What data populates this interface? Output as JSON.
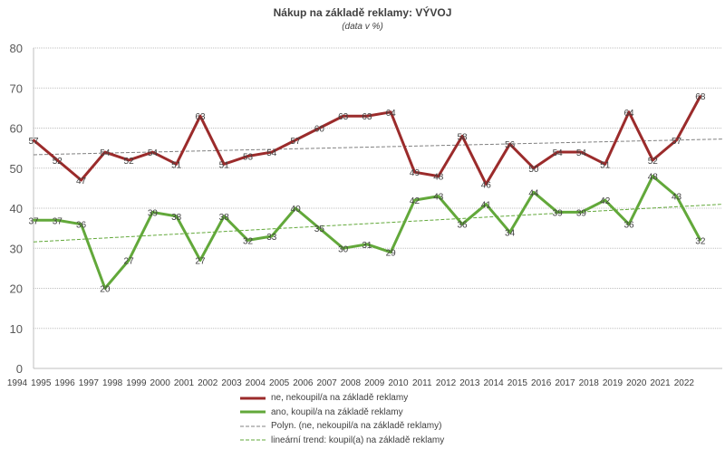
{
  "chart_data": {
    "type": "line",
    "title": "Nákup na základě reklamy: VÝVOJ",
    "subtitle": "(data v %)",
    "x": [
      "1994",
      "1995",
      "1996",
      "1997",
      "1998",
      "1999",
      "2000",
      "2001",
      "2002",
      "2003",
      "2004",
      "2005",
      "2006",
      "2007",
      "2008",
      "2009",
      "2010",
      "2011",
      "2012",
      "2013",
      "2014",
      "2015",
      "2016",
      "2017",
      "2018",
      "2019",
      "2020",
      "2021",
      "2022"
    ],
    "ylim": [
      0,
      80
    ],
    "yticks": [
      "0",
      "10",
      "20",
      "30",
      "40",
      "50",
      "60",
      "70",
      "80"
    ],
    "grid": true,
    "legend_position": "bottom",
    "series": [
      {
        "name": "ne, nekoupil/a na základě reklamy",
        "color": "#9b2b2b",
        "values": [
          57,
          52,
          47,
          54,
          52,
          54,
          51,
          63,
          51,
          53,
          54,
          57,
          60,
          63,
          63,
          64,
          49,
          48,
          58,
          46,
          56,
          50,
          54,
          54,
          51,
          64,
          52,
          57,
          68
        ]
      },
      {
        "name": "ano, koupil/a na základě reklamy",
        "color": "#62a83a",
        "values": [
          37,
          37,
          36,
          20,
          27,
          39,
          38,
          27,
          38,
          32,
          33,
          40,
          35,
          30,
          31,
          29,
          42,
          43,
          36,
          41,
          34,
          44,
          39,
          39,
          42,
          36,
          48,
          43,
          32
        ]
      }
    ],
    "trendlines": [
      {
        "name": "Polyn. (ne, nekoupil/a na základě reklamy)",
        "color": "#808080",
        "kind": "polynomial"
      },
      {
        "name": "lineární trend: koupil(a) na základě reklamy",
        "color": "#62a83a",
        "kind": "linear"
      }
    ]
  }
}
